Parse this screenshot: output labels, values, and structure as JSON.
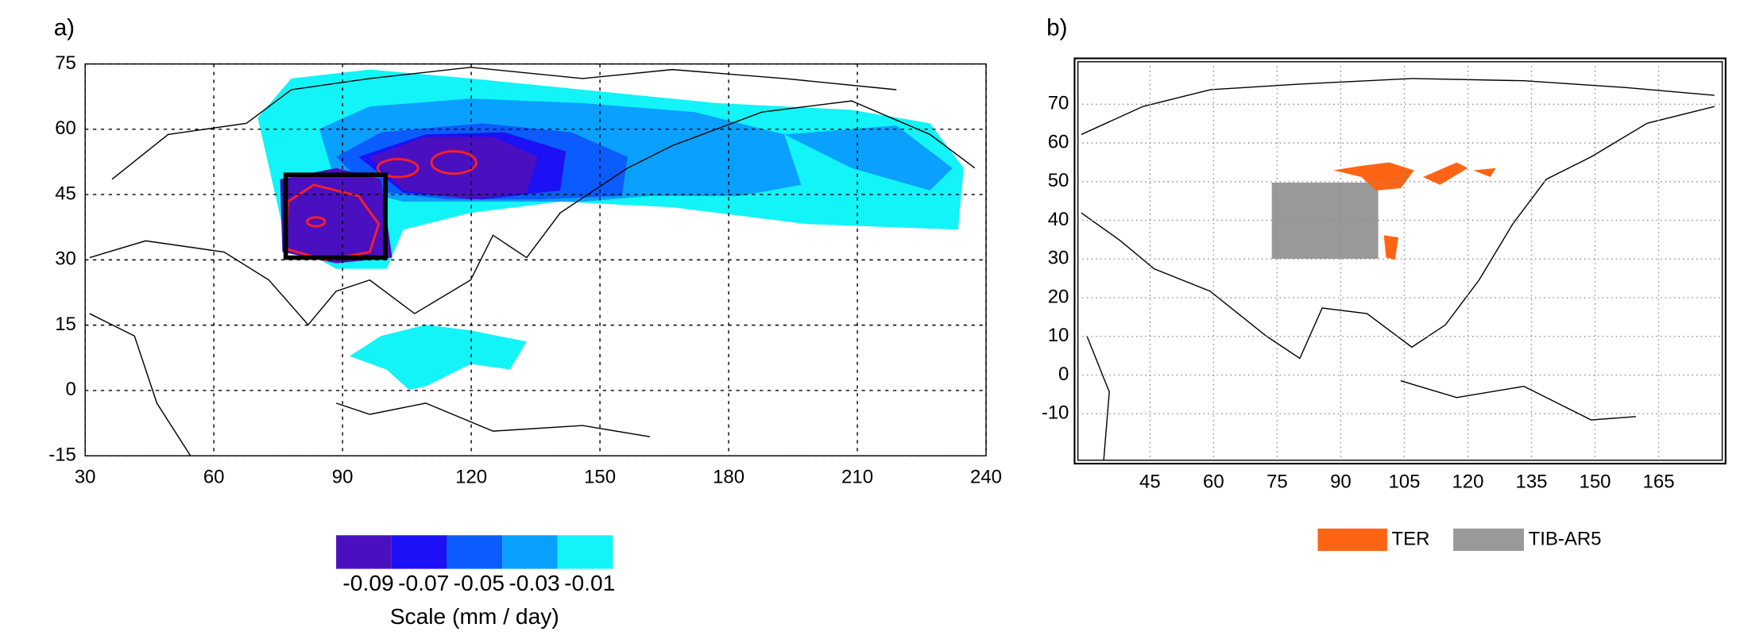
{
  "panels": [
    {
      "label": "a)",
      "xlim": [
        30,
        240
      ],
      "ylim": [
        -15,
        75
      ],
      "xticks": [
        30,
        60,
        90,
        120,
        150,
        180,
        210,
        240
      ],
      "yticks": [
        75,
        60,
        45,
        30,
        15,
        0,
        -15
      ],
      "grid": "dashed",
      "colorbar": {
        "levels": [
          -0.09,
          -0.07,
          -0.05,
          -0.03,
          -0.01
        ],
        "colors": [
          "#4a10c0",
          "#1c10f4",
          "#0a5cff",
          "#0aa0ff",
          "#12f4f8"
        ],
        "label": "Scale (mm / day)"
      }
    },
    {
      "label": "b)",
      "xlim": [
        28,
        180
      ],
      "ylim": [
        -22,
        81
      ],
      "xticks": [
        45,
        60,
        75,
        90,
        105,
        120,
        135,
        150,
        165
      ],
      "yticks": [
        70,
        60,
        50,
        40,
        30,
        20,
        10,
        0,
        -10
      ],
      "grid": "dotted",
      "legend": [
        {
          "name": "TER",
          "color": "#ff6414"
        },
        {
          "name": "TIB-AR5",
          "color": "#999999"
        }
      ]
    }
  ]
}
